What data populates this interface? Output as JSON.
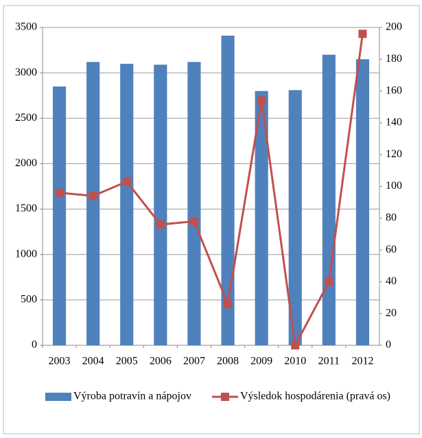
{
  "chart_data": {
    "type": "bar",
    "categories": [
      "2003",
      "2004",
      "2005",
      "2006",
      "2007",
      "2008",
      "2009",
      "2010",
      "2011",
      "2012"
    ],
    "series": [
      {
        "name": "Výroba potravín a nápojov",
        "type": "bar",
        "color": "#4f81bd",
        "values": [
          2850,
          3120,
          3100,
          3090,
          3120,
          3410,
          2800,
          2810,
          3200,
          3150
        ]
      },
      {
        "name": "Výsledok hospodárenia (pravá os)",
        "type": "line",
        "axis": "y2",
        "color": "#c0504d",
        "values": [
          96,
          94,
          103,
          76,
          78,
          26,
          154,
          0,
          40,
          196
        ]
      }
    ],
    "ylim": [
      0,
      3500
    ],
    "yticks": [
      0,
      500,
      1000,
      1500,
      2000,
      2500,
      3000,
      3500
    ],
    "y2lim": [
      0,
      200
    ],
    "y2ticks": [
      0,
      20,
      40,
      60,
      80,
      100,
      120,
      140,
      160,
      180,
      200
    ],
    "grid": true,
    "legend": "bottom"
  }
}
